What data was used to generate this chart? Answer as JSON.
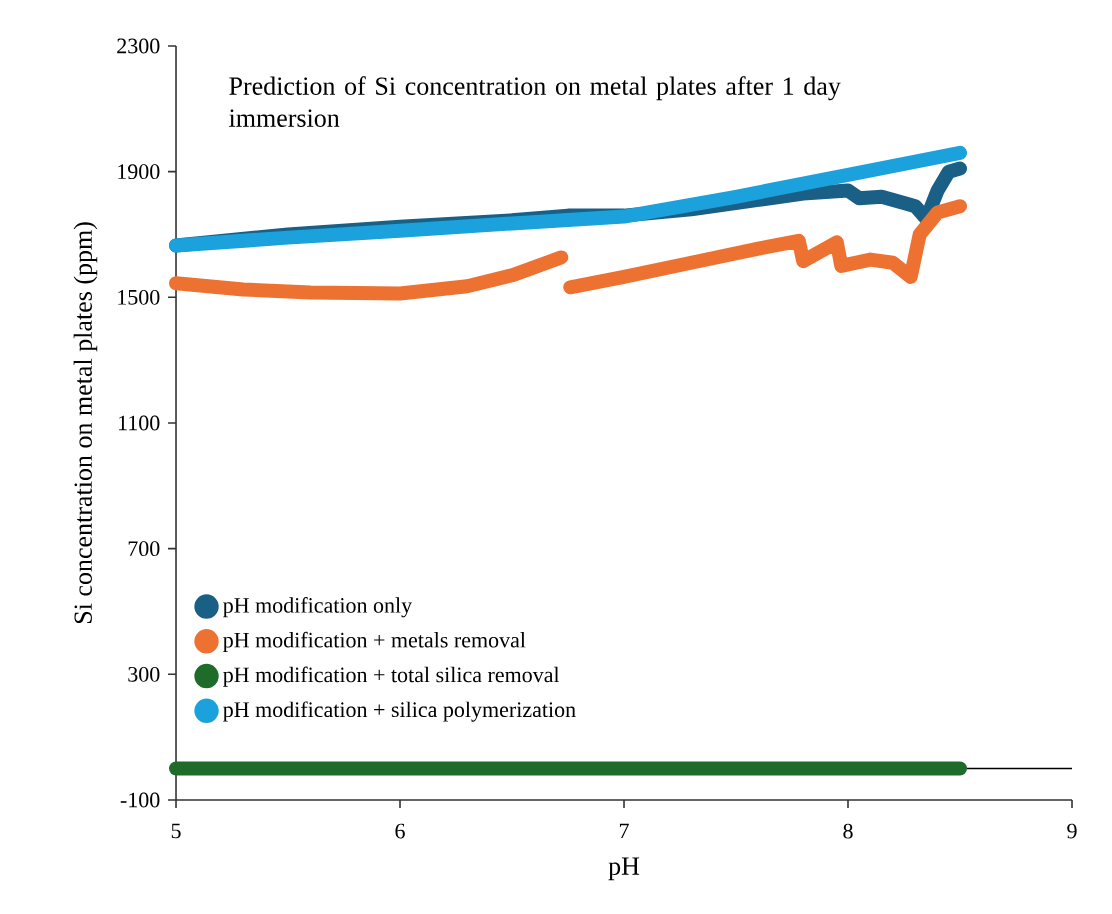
{
  "chart_data": {
    "type": "line",
    "title": "Prediction of Si concentration on metal plates after 1 day immersion",
    "xlabel": "pH",
    "ylabel": "Si concentration on metal plates (ppm)",
    "xlim": [
      5,
      9
    ],
    "xticks": [
      5,
      6,
      7,
      8,
      9
    ],
    "ylim": [
      -100,
      2300
    ],
    "yticks": [
      -100,
      300,
      700,
      1100,
      1500,
      1900,
      2300
    ],
    "legend": "bottom left",
    "grid": false,
    "line_style": "solid",
    "ref_lines": [
      {
        "axis": "y",
        "value": 0,
        "color": "#000000"
      }
    ],
    "series": [
      {
        "name": "pH modification only",
        "color": "#1a5f85",
        "x": [
          5,
          5.5,
          6,
          6.5,
          6.75,
          7,
          7.3,
          7.6,
          7.8,
          8.0,
          8.05,
          8.15,
          8.25,
          8.3,
          8.35,
          8.4,
          8.45,
          8.5
        ],
        "values": [
          1665,
          1700,
          1725,
          1745,
          1760,
          1760,
          1780,
          1810,
          1830,
          1840,
          1815,
          1820,
          1800,
          1790,
          1750,
          1840,
          1900,
          1910
        ]
      },
      {
        "name": "pH modification + metals removal",
        "color": "#ed7232",
        "x": [
          5,
          5.3,
          5.6,
          6,
          6.3,
          6.5,
          6.72,
          6.74,
          6.76,
          7,
          7.3,
          7.6,
          7.78,
          7.8,
          7.95,
          7.97,
          8.1,
          8.2,
          8.28,
          8.32,
          8.4,
          8.5
        ],
        "values": [
          1545,
          1525,
          1515,
          1512,
          1535,
          1570,
          1627,
          null,
          1532,
          1565,
          1610,
          1655,
          1680,
          1615,
          1675,
          1600,
          1620,
          1610,
          1565,
          1700,
          1770,
          1790
        ]
      },
      {
        "name": "pH modification + total silica removal",
        "color": "#1e6b2a",
        "x": [
          5,
          8.5
        ],
        "values": [
          0,
          0
        ]
      },
      {
        "name": "pH modification + silica polymerization",
        "color": "#1ba1db",
        "x": [
          5,
          5.5,
          6,
          6.5,
          7,
          7.5,
          8,
          8.5
        ],
        "values": [
          1665,
          1690,
          1712,
          1735,
          1757,
          1820,
          1890,
          1960
        ]
      }
    ]
  }
}
